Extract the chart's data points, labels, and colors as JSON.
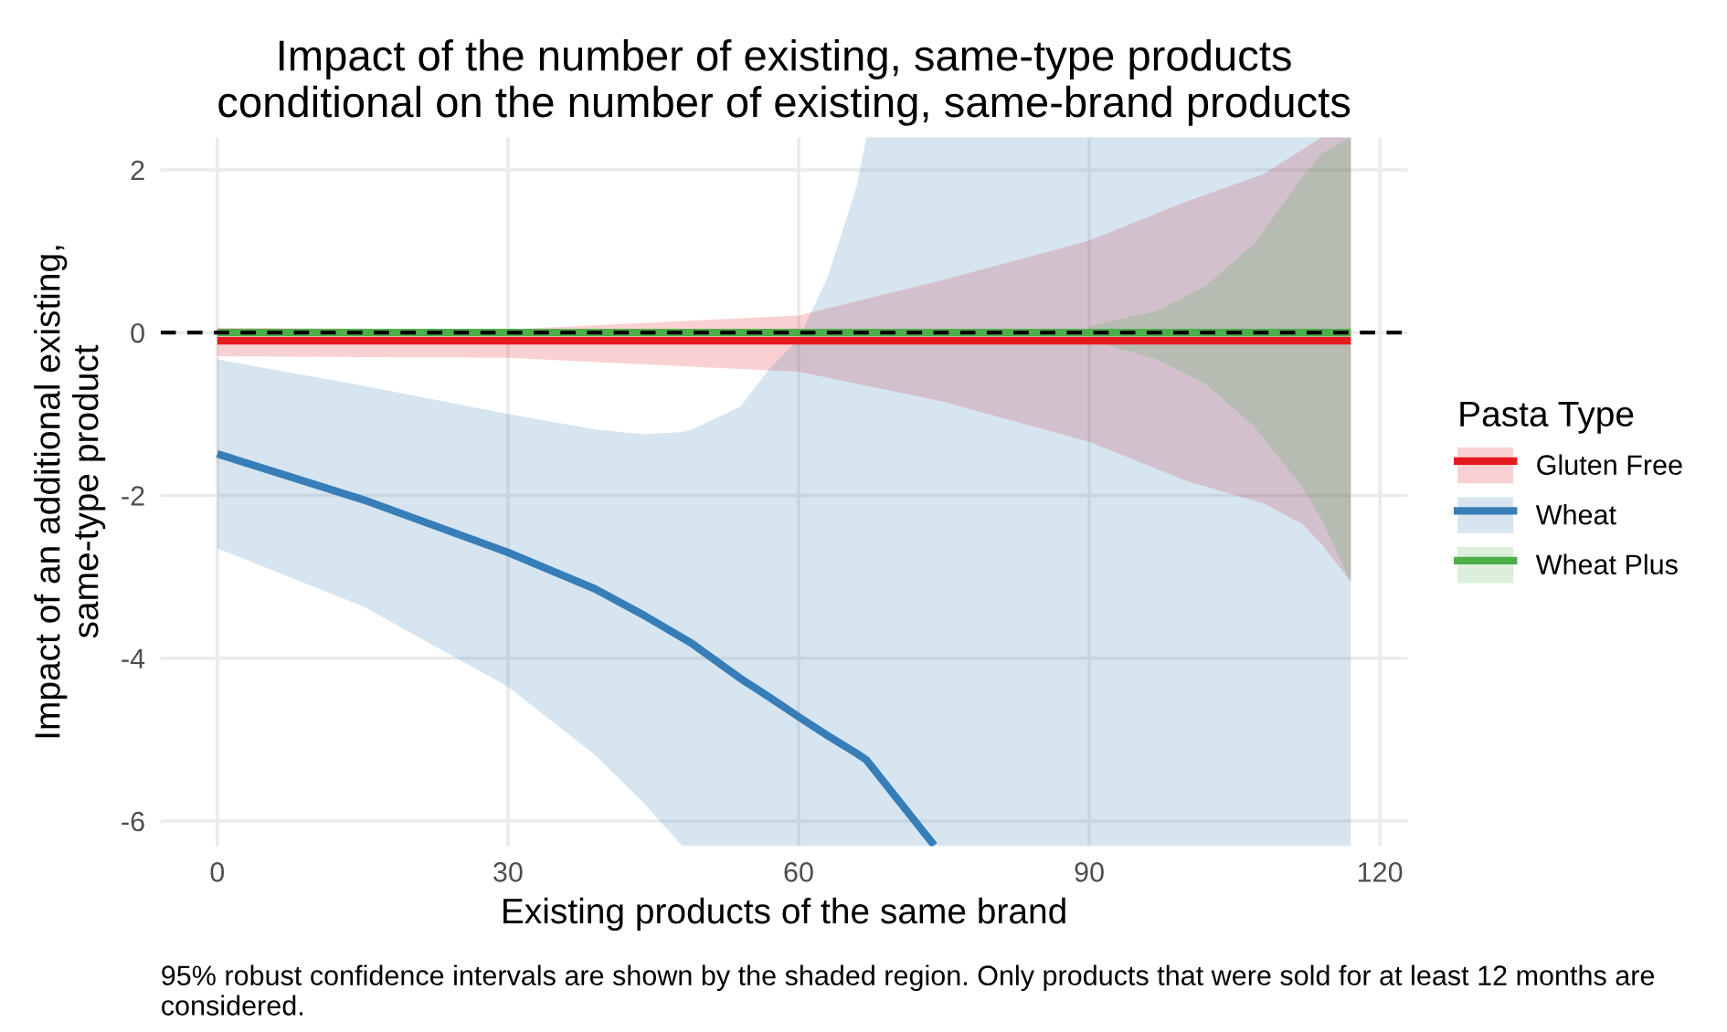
{
  "chart_data": {
    "type": "line",
    "title": "Impact of the number of existing, same-type products\nconditional on the number of existing, same-brand products",
    "xlabel": "Existing products of the same brand",
    "ylabel": "Impact of an additional existing,\nsame-type product",
    "legend_title": "Pasta Type",
    "xlim": [
      -5.85,
      122.85
    ],
    "xticks": [
      0,
      30,
      60,
      90,
      120
    ],
    "ylim": [
      -6.31,
      2.4
    ],
    "yticks": [
      -6,
      -4,
      -2,
      0,
      2
    ],
    "grid": true,
    "legend": "right",
    "series": [
      {
        "name": "Gluten Free",
        "color": "#e41a1c",
        "x": [
          0,
          30,
          60,
          75,
          90,
          100,
          108,
          112,
          114,
          117
        ],
        "values": [
          -0.1,
          -0.1,
          -0.1,
          -0.1,
          -0.1,
          -0.1,
          -0.1,
          -0.1,
          -0.1,
          -0.1
        ],
        "upper": [
          0.06,
          0.04,
          0.21,
          0.65,
          1.13,
          1.61,
          1.95,
          2.25,
          2.4,
          2.4
        ],
        "lower": [
          -0.29,
          -0.31,
          -0.48,
          -0.85,
          -1.34,
          -1.82,
          -2.1,
          -2.35,
          -2.6,
          -3.06
        ]
      },
      {
        "name": "Wheat",
        "color": "#377eb8",
        "x": [
          0,
          15,
          30,
          39,
          44,
          48,
          49,
          54,
          57,
          60,
          63,
          66,
          67,
          74,
          90,
          117
        ],
        "values": [
          -1.49,
          -2.05,
          -2.7,
          -3.15,
          -3.47,
          -3.75,
          -3.82,
          -4.25,
          -4.48,
          -4.72,
          -4.95,
          -5.17,
          -5.25,
          -6.3,
          null,
          null
        ],
        "upper": [
          -0.33,
          -0.65,
          -1.0,
          -1.19,
          -1.25,
          -1.22,
          -1.19,
          -0.91,
          -0.44,
          -0.08,
          0.68,
          1.8,
          2.4,
          2.4,
          2.4,
          2.4
        ],
        "lower": [
          -2.65,
          -3.36,
          -4.35,
          -5.19,
          -5.78,
          -6.31,
          -6.31,
          -6.31,
          -6.31,
          -6.31,
          -6.31,
          -6.31,
          -6.31,
          -6.31,
          -6.31,
          -6.31
        ]
      },
      {
        "name": "Wheat Plus",
        "color": "#4daf4a",
        "x": [
          0,
          60,
          80,
          90,
          97,
          102,
          107,
          112,
          114,
          117
        ],
        "values": [
          0,
          0,
          0,
          0,
          0,
          0,
          0,
          0,
          0,
          0
        ],
        "upper": [
          null,
          null,
          null,
          0.08,
          0.27,
          0.57,
          1.09,
          1.91,
          2.2,
          2.4
        ],
        "lower": [
          null,
          null,
          null,
          -0.09,
          -0.33,
          -0.63,
          -1.15,
          -1.9,
          -2.3,
          -3.06
        ]
      }
    ],
    "ref_lines": [
      {
        "axis": "y",
        "value": 0,
        "color": "#000000",
        "line_style": "dashed"
      }
    ],
    "annotations": [
      "95% robust confidence intervals are shown by the shaded region. Only products that were sold for at least 12 months are considered."
    ]
  }
}
